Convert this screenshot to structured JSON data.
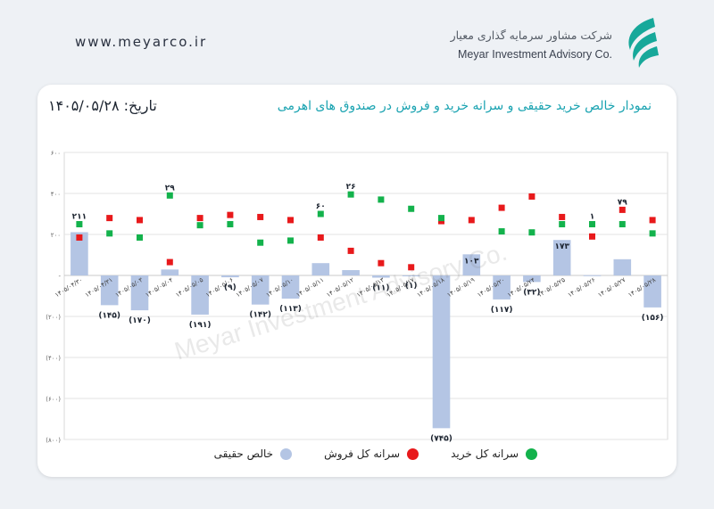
{
  "header": {
    "url": "www.meyarco.ir",
    "brand_fa": "شرکت مشاور سرمایه گذاری معیار",
    "brand_en": "Meyar Investment Advisory Co."
  },
  "card": {
    "title": "نمودار خالص خرید حقیقی و سرانه خرید و فروش در صندوق های اهرمی",
    "date": "تاریخ: ۱۴۰۵/۰۵/۲۸",
    "watermark": "Meyar Investment Advisory Co."
  },
  "colors": {
    "bar": "#b4c5e4",
    "sell": "#e8191b",
    "buy": "#13b24c",
    "title": "#1aa3b1"
  },
  "chart_data": {
    "type": "bar",
    "title": "نمودار خالص خرید حقیقی و سرانه خرید و فروش در صندوق های اهرمی",
    "categories": [
      "۱۴۰۵/۰۴/۳۰",
      "۱۴۰۵/۰۴/۳۱",
      "۱۴۰۵/۰۵/۰۳",
      "۱۴۰۵/۰۵/۰۴",
      "۱۴۰۵/۰۵/۰۵",
      "۱۴۰۵/۰۵/۰۶",
      "۱۴۰۵/۰۵/۰۷",
      "۱۴۰۵/۰۵/۱۰",
      "۱۴۰۵/۰۵/۱۱",
      "۱۴۰۵/۰۵/۱۲",
      "۱۴۰۵/۰۵/۱۳",
      "۱۴۰۵/۰۵/۱۷",
      "۱۴۰۵/۰۵/۱۸",
      "۱۴۰۵/۰۵/۱۹",
      "۱۴۰۵/۰۵/۲۰",
      "۱۴۰۵/۰۵/۲۴",
      "۱۴۰۵/۰۵/۲۵",
      "۱۴۰۵/۰۵/۲۶",
      "۱۴۰۵/۰۵/۲۷",
      "۱۴۰۵/۰۵/۲۸"
    ],
    "series": [
      {
        "name": "خالص حقیقی",
        "kind": "bar",
        "values": [
          211,
          -145,
          -170,
          29,
          -191,
          -9,
          -142,
          -113,
          60,
          26,
          -11,
          -1,
          -745,
          103,
          -117,
          -32,
          173,
          1,
          79,
          -156
        ],
        "labels": [
          "۲۱۱",
          "(۱۴۵)",
          "(۱۷۰)",
          "۲۹",
          "(۱۹۱)",
          "(۹)",
          "(۱۴۲)",
          "(۱۱۳)",
          "۶۰",
          "۲۶",
          "(۱۱)",
          "(۱)",
          "(۷۴۵)",
          "۱۰۳",
          "(۱۱۷)",
          "(۳۲)",
          "۱۷۳",
          "۱",
          "۷۹",
          "(۱۵۶)"
        ]
      },
      {
        "name": "سرانه کل فروش",
        "kind": "marker",
        "values": [
          185,
          280,
          270,
          65,
          280,
          295,
          285,
          270,
          185,
          120,
          60,
          40,
          265,
          270,
          330,
          385,
          285,
          190,
          320,
          270
        ]
      },
      {
        "name": "سرانه کل خرید",
        "kind": "marker",
        "values": [
          250,
          205,
          185,
          390,
          245,
          250,
          160,
          170,
          300,
          395,
          370,
          325,
          280,
          null,
          215,
          210,
          250,
          250,
          250,
          205
        ]
      }
    ],
    "yticks": [
      "۶۰۰",
      "۴۰۰",
      "۲۰۰",
      "-",
      "(۲۰۰)",
      "(۴۰۰)",
      "(۶۰۰)",
      "(۸۰۰)"
    ],
    "ytick_values": [
      600,
      400,
      200,
      0,
      -200,
      -400,
      -600,
      -800
    ],
    "ylim": [
      -800,
      600
    ],
    "grid": true,
    "legend_position": "bottom"
  },
  "legend": {
    "buy": "سرانه کل خرید",
    "sell": "سرانه کل فروش",
    "net": "خالص حقیقی"
  }
}
